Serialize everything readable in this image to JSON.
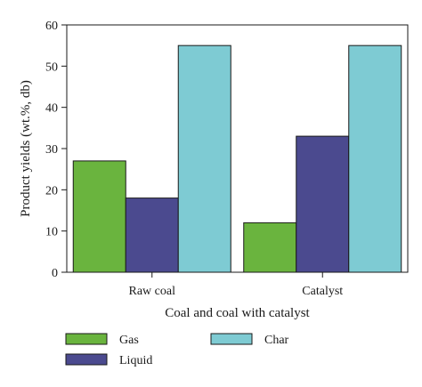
{
  "chart_data": {
    "type": "bar",
    "categories": [
      "Raw coal",
      "Catalyst"
    ],
    "series": [
      {
        "name": "Gas",
        "values": [
          27,
          12
        ],
        "color": "#6ab43e"
      },
      {
        "name": "Liquid",
        "values": [
          18,
          33
        ],
        "color": "#4b4a8f"
      },
      {
        "name": "Char",
        "values": [
          55,
          55
        ],
        "color": "#7ecbd3"
      }
    ],
    "xlabel": "Coal and coal with catalyst",
    "ylabel": "Product yields (wt.%, db)",
    "ylim": [
      0,
      60
    ],
    "yticks": [
      0,
      10,
      20,
      30,
      40,
      50,
      60
    ],
    "grid": false,
    "legend_position": "bottom"
  }
}
